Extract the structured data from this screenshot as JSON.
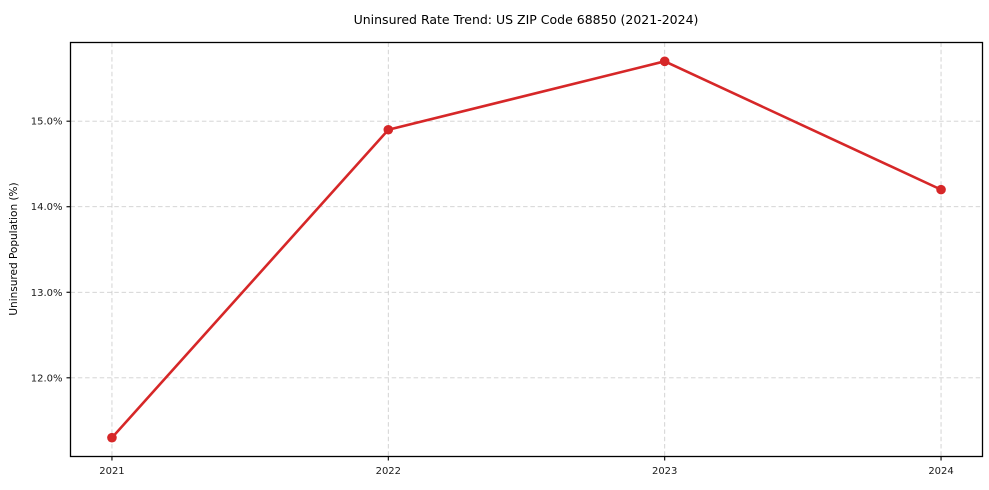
{
  "chart_data": {
    "type": "line",
    "title": "Uninsured Rate Trend: US ZIP Code 68850 (2021-2024)",
    "xlabel": "",
    "ylabel": "Uninsured Population (%)",
    "x": [
      2021,
      2022,
      2023,
      2024
    ],
    "x_labels": [
      "2021",
      "2022",
      "2023",
      "2024"
    ],
    "series": [
      {
        "name": "Uninsured Rate",
        "values": [
          11.3,
          14.9,
          15.7,
          14.2
        ]
      }
    ],
    "ytick_values": [
      12.0,
      13.0,
      14.0,
      15.0
    ],
    "ytick_labels": [
      "12.0%",
      "13.0%",
      "14.0%",
      "15.0%"
    ],
    "ylim": [
      11.08,
      15.92
    ],
    "xlim": [
      2020.85,
      2024.15
    ],
    "grid": true,
    "grid_style": "dashed",
    "legend": false,
    "styles": {
      "line_color": "#d62728",
      "marker_color": "#d62728",
      "grid_color": "#cfcfcf",
      "spine_color": "#000000",
      "text_color": "#1a1a1a",
      "background": "#ffffff"
    }
  }
}
